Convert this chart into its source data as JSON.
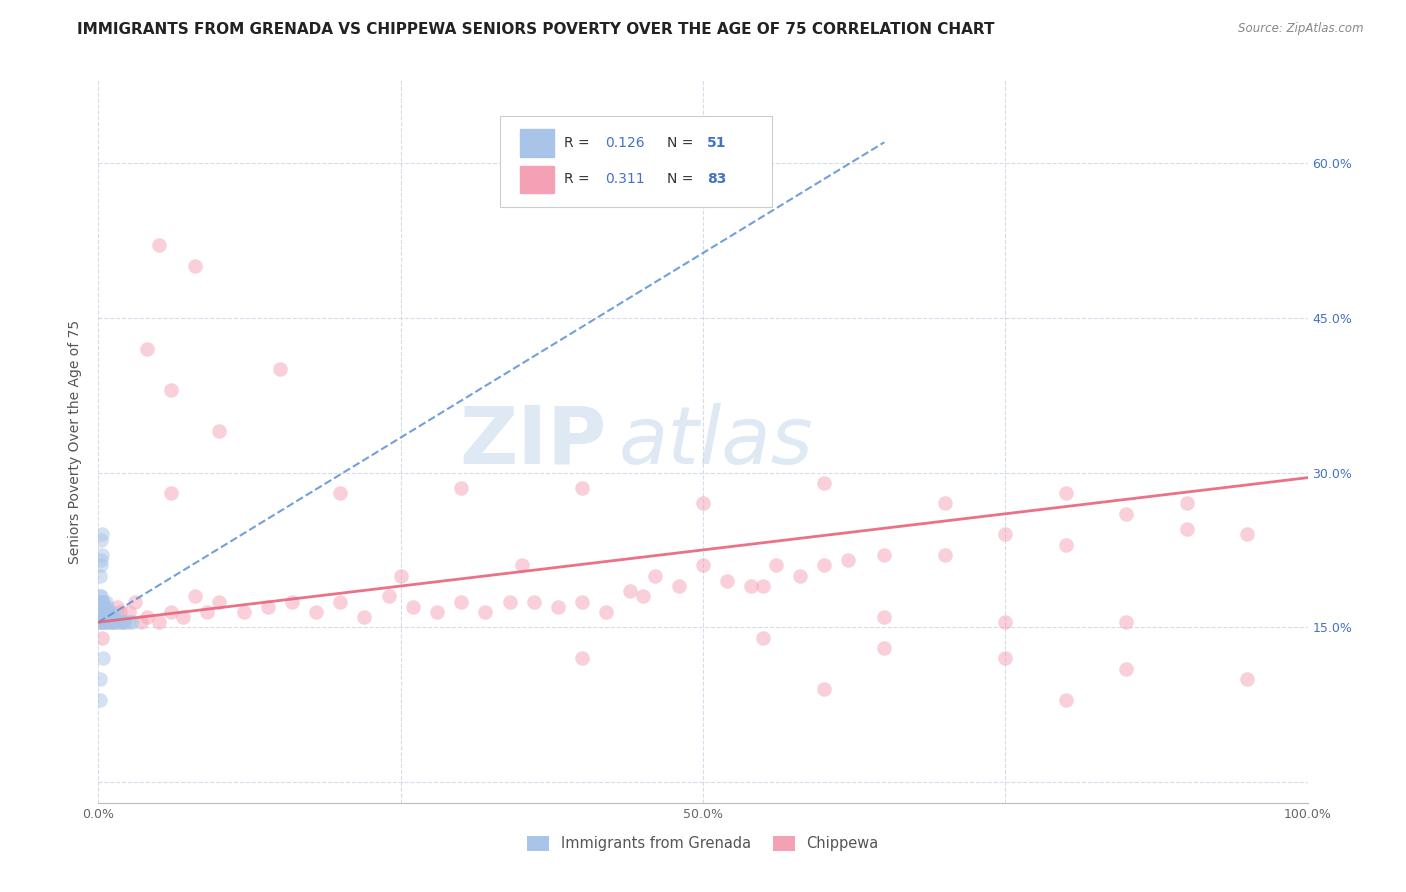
{
  "title": "IMMIGRANTS FROM GRENADA VS CHIPPEWA SENIORS POVERTY OVER THE AGE OF 75 CORRELATION CHART",
  "source": "Source: ZipAtlas.com",
  "ylabel": "Seniors Poverty Over the Age of 75",
  "xlim": [
    0,
    1.0
  ],
  "ylim": [
    -0.02,
    0.68
  ],
  "color_blue": "#a8c4e8",
  "color_pink": "#f4a0b5",
  "trendline_blue_color": "#5b8fd4",
  "trendline_pink_color": "#e8637a",
  "watermark_zip": "ZIP",
  "watermark_atlas": "atlas",
  "background_color": "#ffffff",
  "grid_color": "#d0d8e8",
  "title_fontsize": 11,
  "axis_label_fontsize": 10,
  "tick_fontsize": 9,
  "scatter_size": 110,
  "scatter_alpha": 0.5,
  "blue_x": [
    0.001,
    0.001,
    0.001,
    0.001,
    0.002,
    0.002,
    0.002,
    0.002,
    0.002,
    0.003,
    0.003,
    0.003,
    0.003,
    0.003,
    0.004,
    0.004,
    0.004,
    0.004,
    0.005,
    0.005,
    0.005,
    0.006,
    0.006,
    0.006,
    0.007,
    0.007,
    0.008,
    0.008,
    0.009,
    0.01,
    0.01,
    0.011,
    0.012,
    0.013,
    0.014,
    0.015,
    0.016,
    0.018,
    0.02,
    0.022,
    0.025,
    0.028,
    0.001,
    0.002,
    0.003,
    0.002,
    0.003,
    0.002,
    0.001,
    0.004,
    0.001
  ],
  "blue_y": [
    0.155,
    0.165,
    0.175,
    0.18,
    0.155,
    0.16,
    0.165,
    0.17,
    0.18,
    0.155,
    0.16,
    0.165,
    0.17,
    0.175,
    0.155,
    0.16,
    0.17,
    0.175,
    0.155,
    0.16,
    0.17,
    0.155,
    0.165,
    0.175,
    0.16,
    0.17,
    0.155,
    0.165,
    0.16,
    0.155,
    0.165,
    0.16,
    0.155,
    0.16,
    0.155,
    0.16,
    0.155,
    0.155,
    0.155,
    0.155,
    0.155,
    0.155,
    0.2,
    0.21,
    0.22,
    0.235,
    0.24,
    0.215,
    0.1,
    0.12,
    0.08
  ],
  "pink_x": [
    0.001,
    0.002,
    0.003,
    0.005,
    0.007,
    0.008,
    0.01,
    0.012,
    0.015,
    0.018,
    0.02,
    0.025,
    0.03,
    0.035,
    0.04,
    0.05,
    0.06,
    0.07,
    0.08,
    0.09,
    0.1,
    0.12,
    0.14,
    0.16,
    0.18,
    0.2,
    0.22,
    0.24,
    0.26,
    0.28,
    0.3,
    0.32,
    0.34,
    0.36,
    0.38,
    0.4,
    0.42,
    0.44,
    0.46,
    0.48,
    0.5,
    0.52,
    0.54,
    0.56,
    0.58,
    0.6,
    0.62,
    0.65,
    0.7,
    0.75,
    0.8,
    0.85,
    0.9,
    0.95,
    0.15,
    0.08,
    0.06,
    0.1,
    0.2,
    0.3,
    0.4,
    0.5,
    0.6,
    0.7,
    0.8,
    0.9,
    0.25,
    0.35,
    0.45,
    0.55,
    0.65,
    0.75,
    0.85,
    0.55,
    0.65,
    0.75,
    0.85,
    0.95,
    0.4,
    0.6,
    0.8,
    0.05,
    0.04,
    0.06
  ],
  "pink_y": [
    0.155,
    0.165,
    0.14,
    0.16,
    0.155,
    0.165,
    0.16,
    0.155,
    0.17,
    0.165,
    0.155,
    0.165,
    0.175,
    0.155,
    0.16,
    0.155,
    0.165,
    0.16,
    0.18,
    0.165,
    0.175,
    0.165,
    0.17,
    0.175,
    0.165,
    0.175,
    0.16,
    0.18,
    0.17,
    0.165,
    0.175,
    0.165,
    0.175,
    0.175,
    0.17,
    0.175,
    0.165,
    0.185,
    0.2,
    0.19,
    0.21,
    0.195,
    0.19,
    0.21,
    0.2,
    0.21,
    0.215,
    0.22,
    0.22,
    0.24,
    0.23,
    0.26,
    0.245,
    0.24,
    0.4,
    0.5,
    0.28,
    0.34,
    0.28,
    0.285,
    0.285,
    0.27,
    0.29,
    0.27,
    0.28,
    0.27,
    0.2,
    0.21,
    0.18,
    0.19,
    0.16,
    0.155,
    0.155,
    0.14,
    0.13,
    0.12,
    0.11,
    0.1,
    0.12,
    0.09,
    0.08,
    0.52,
    0.42,
    0.38
  ]
}
